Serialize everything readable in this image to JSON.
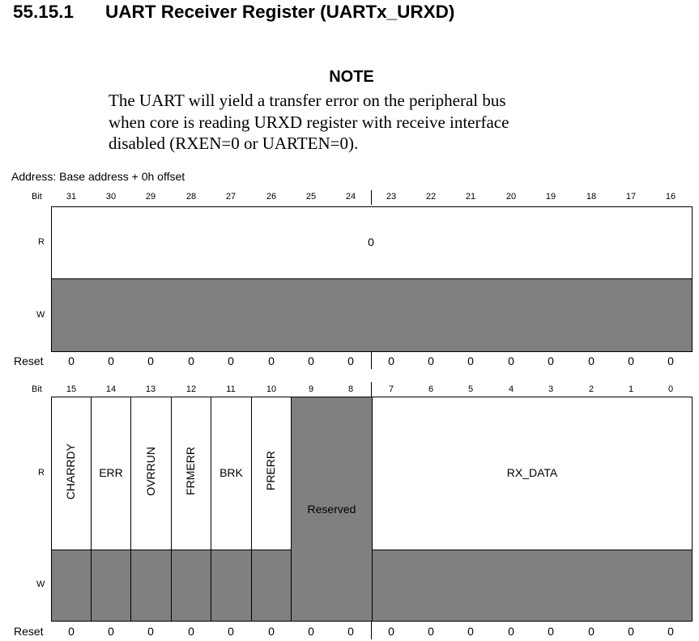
{
  "section": {
    "number": "55.15.1",
    "title": "UART Receiver Register (UARTx_URXD)"
  },
  "note": {
    "heading": "NOTE",
    "lines": [
      "The UART will yield a transfer error on the peripheral bus",
      "when core is reading URXD register with receive interface",
      "disabled (RXEN=0 or UARTEN=0)."
    ]
  },
  "address": "Address: Base address + 0h offset",
  "labels": {
    "bit": "Bit",
    "read": "R",
    "write": "W",
    "reset": "Reset"
  },
  "upper": {
    "bits": [
      "31",
      "30",
      "29",
      "28",
      "27",
      "26",
      "25",
      "24",
      "23",
      "22",
      "21",
      "20",
      "19",
      "18",
      "17",
      "16"
    ],
    "read_value": "0",
    "reset": [
      "0",
      "0",
      "0",
      "0",
      "0",
      "0",
      "0",
      "0",
      "0",
      "0",
      "0",
      "0",
      "0",
      "0",
      "0",
      "0"
    ]
  },
  "lower": {
    "bits": [
      "15",
      "14",
      "13",
      "12",
      "11",
      "10",
      "9",
      "8",
      "7",
      "6",
      "5",
      "4",
      "3",
      "2",
      "1",
      "0"
    ],
    "fields": {
      "charrdy": "CHARRDY",
      "err": "ERR",
      "ovrrun": "OVRRUN",
      "frmerr": "FRMERR",
      "brk": "BRK",
      "prerr": "PRERR",
      "reserved": "Reserved",
      "rx_data": "RX_DATA"
    },
    "reset": [
      "0",
      "0",
      "0",
      "0",
      "0",
      "0",
      "0",
      "0",
      "0",
      "0",
      "0",
      "0",
      "0",
      "0",
      "0",
      "0"
    ]
  }
}
